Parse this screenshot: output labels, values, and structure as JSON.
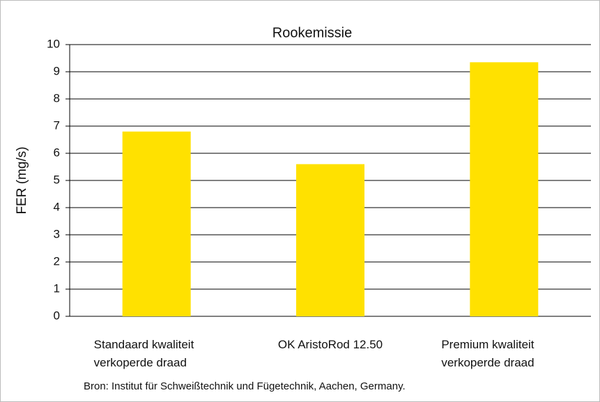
{
  "chart_data": {
    "type": "bar",
    "title": "Rookemissie",
    "y_label": "FER (mg/s)",
    "categories": [
      "Standaard kwaliteit verkoperde draad",
      "OK AristoRod 12.50",
      "Premium kwaliteit verkoperde draad"
    ],
    "values": [
      6.8,
      5.6,
      9.35
    ],
    "color": "#ffe100",
    "ylim": [
      0,
      10
    ],
    "yticks": [
      0,
      1,
      2,
      3,
      4,
      5,
      6,
      7,
      8,
      9,
      10
    ],
    "grid": true,
    "source": "Bron: Institut für Schweißtechnik und Fügetechnik, Aachen, Germany."
  }
}
